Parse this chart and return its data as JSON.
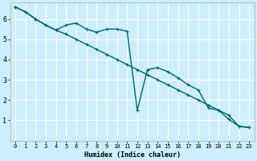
{
  "xlabel": "Humidex (Indice chaleur)",
  "bg_color": "#cceeff",
  "line_color": "#006666",
  "grid_color": "#ffffff",
  "xlim": [
    -0.5,
    23.5
  ],
  "ylim": [
    0,
    6.8
  ],
  "xticks": [
    0,
    1,
    2,
    3,
    4,
    5,
    6,
    7,
    8,
    9,
    10,
    11,
    12,
    13,
    14,
    15,
    16,
    17,
    18,
    19,
    20,
    21,
    22,
    23
  ],
  "yticks": [
    1,
    2,
    3,
    4,
    5,
    6
  ],
  "line1_x": [
    0,
    1,
    2,
    3,
    4,
    5,
    6,
    7,
    8,
    9,
    10,
    11,
    12,
    13,
    14,
    15,
    16,
    17,
    18,
    19,
    20,
    21,
    22,
    23
  ],
  "line1_y": [
    6.6,
    6.35,
    6.0,
    5.7,
    5.45,
    5.25,
    5.0,
    4.75,
    4.5,
    4.25,
    4.0,
    3.75,
    3.5,
    3.25,
    3.0,
    2.75,
    2.5,
    2.25,
    2.0,
    1.75,
    1.5,
    1.25,
    0.7,
    0.65
  ],
  "line2_x": [
    0,
    1,
    2,
    3,
    4,
    5,
    6,
    7,
    8,
    9,
    10,
    11,
    12,
    13,
    14,
    15,
    16,
    17,
    18,
    19,
    20,
    21,
    22,
    23
  ],
  "line2_y": [
    6.6,
    6.35,
    6.0,
    5.7,
    5.45,
    5.7,
    5.8,
    5.5,
    5.35,
    5.5,
    5.5,
    5.4,
    1.5,
    3.5,
    3.6,
    3.4,
    3.1,
    2.75,
    2.5,
    1.6,
    1.5,
    1.05,
    0.7,
    0.65
  ]
}
